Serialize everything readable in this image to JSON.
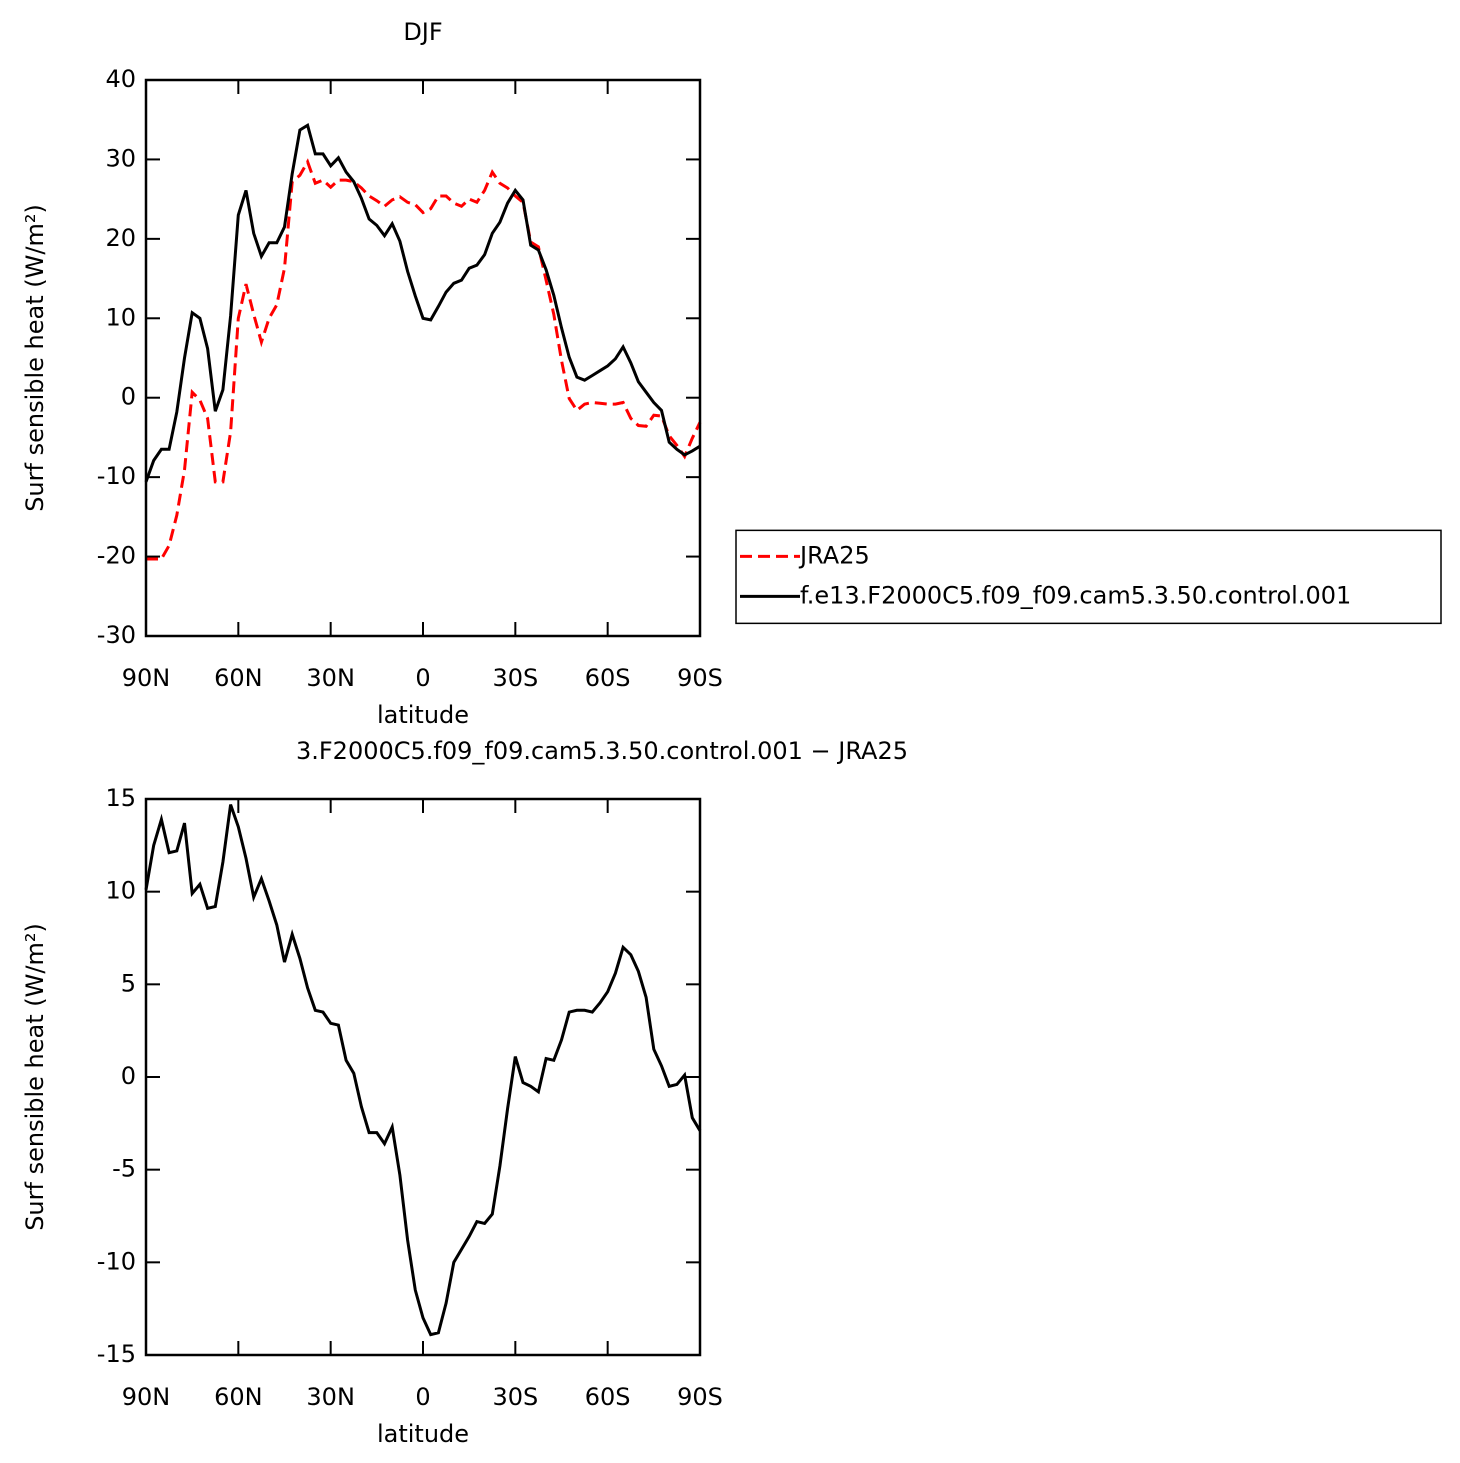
{
  "chart_data": [
    {
      "type": "line",
      "title": "DJF",
      "xlabel": "latitude",
      "ylabel": "Surf sensible heat (W/m²)",
      "x": [
        90,
        87.5,
        85,
        82.5,
        80,
        77.5,
        75,
        72.5,
        70,
        67.5,
        65,
        62.5,
        60,
        57.5,
        55,
        52.5,
        50,
        47.5,
        45,
        42.5,
        40,
        37.5,
        35,
        32.5,
        30,
        27.5,
        25,
        22.5,
        20,
        17.5,
        15,
        12.5,
        10,
        7.5,
        5,
        2.5,
        0,
        -2.5,
        -5,
        -7.5,
        -10,
        -12.5,
        -15,
        -17.5,
        -20,
        -22.5,
        -25,
        -27.5,
        -30,
        -32.5,
        -35,
        -37.5,
        -40,
        -42.5,
        -45,
        -47.5,
        -50,
        -52.5,
        -55,
        -57.5,
        -60,
        -62.5,
        -65,
        -67.5,
        -70,
        -72.5,
        -75,
        -77.5,
        -80,
        -82.5,
        -85,
        -87.5,
        -90
      ],
      "xlim": [
        90,
        -90
      ],
      "xticks": [
        {
          "value": 90,
          "label": "90N"
        },
        {
          "value": 60,
          "label": "60N"
        },
        {
          "value": 30,
          "label": "30N"
        },
        0,
        {
          "value": -30,
          "label": "30S"
        },
        {
          "value": -60,
          "label": "60S"
        },
        {
          "value": -90,
          "label": "90S"
        }
      ],
      "ylim": [
        -30,
        40
      ],
      "yticks": [
        -30,
        -20,
        -10,
        0,
        10,
        20,
        30,
        40
      ],
      "legend": "right",
      "series": [
        {
          "name": "JRA25",
          "color": "#ff0000",
          "linestyle": "dashed",
          "values": [
            -20.3,
            -20.3,
            -20.3,
            -18.6,
            -14.8,
            -9.1,
            0.7,
            -0.3,
            -2.6,
            -10.6,
            -10.6,
            -4.3,
            10,
            14.3,
            10.5,
            7,
            10,
            11.7,
            16.3,
            27.2,
            28,
            29.7,
            27,
            27.4,
            26.5,
            27.4,
            27.4,
            27.2,
            26.4,
            25.4,
            24.8,
            24.1,
            24.9,
            25.3,
            24.6,
            24.3,
            23.3,
            23.8,
            25.4,
            25.4,
            24.5,
            24.1,
            25,
            24.6,
            26.1,
            28.4,
            27,
            26.4,
            25.4,
            24.6,
            19.6,
            19,
            14.8,
            10.5,
            4.7,
            -0.1,
            -1.6,
            -0.8,
            -0.6,
            -0.7,
            -0.8,
            -0.8,
            -0.6,
            -2.6,
            -3.5,
            -3.6,
            -2.2,
            -2.3,
            -4.8,
            -6,
            -7.4,
            -5.1,
            -3.1
          ]
        },
        {
          "name": "f.e13.F2000C5.f09_f09.cam5.3.50.control.001",
          "color": "#000000",
          "linestyle": "solid",
          "values": [
            -10.6,
            -7.9,
            -6.5,
            -6.5,
            -1.8,
            5,
            10.7,
            10,
            6.2,
            -1.7,
            1,
            10.3,
            23,
            26.1,
            20.7,
            17.8,
            19.5,
            19.5,
            21.5,
            28.2,
            33.7,
            34.3,
            30.7,
            30.7,
            29.2,
            30.2,
            28.4,
            27.2,
            25.1,
            22.5,
            21.7,
            20.4,
            21.9,
            19.7,
            15.9,
            12.8,
            10,
            9.8,
            11.5,
            13.3,
            14.4,
            14.8,
            16.3,
            16.7,
            18,
            20.7,
            22.1,
            24.5,
            26.1,
            24.9,
            19.2,
            18.6,
            16.1,
            12.9,
            8.8,
            5.1,
            2.6,
            2.2,
            2.8,
            3.4,
            4,
            4.9,
            6.4,
            4.4,
            2,
            0.7,
            -0.6,
            -1.6,
            -5.6,
            -6.5,
            -7.2,
            -6.7,
            -6.1
          ]
        }
      ]
    },
    {
      "type": "line",
      "title": "3.F2000C5.f09_f09.cam5.3.50.control.001 − JRA25",
      "xlabel": "latitude",
      "ylabel": "Surf sensible heat (W/m²)",
      "x": [
        90,
        87.5,
        85,
        82.5,
        80,
        77.5,
        75,
        72.5,
        70,
        67.5,
        65,
        62.5,
        60,
        57.5,
        55,
        52.5,
        50,
        47.5,
        45,
        42.5,
        40,
        37.5,
        35,
        32.5,
        30,
        27.5,
        25,
        22.5,
        20,
        17.5,
        15,
        12.5,
        10,
        7.5,
        5,
        2.5,
        0,
        -2.5,
        -5,
        -7.5,
        -10,
        -12.5,
        -15,
        -17.5,
        -20,
        -22.5,
        -25,
        -27.5,
        -30,
        -32.5,
        -35,
        -37.5,
        -40,
        -42.5,
        -45,
        -47.5,
        -50,
        -52.5,
        -55,
        -57.5,
        -60,
        -62.5,
        -65,
        -67.5,
        -70,
        -72.5,
        -75,
        -77.5,
        -80,
        -82.5,
        -85,
        -87.5,
        -90
      ],
      "xlim": [
        90,
        -90
      ],
      "xticks": [
        {
          "value": 90,
          "label": "90N"
        },
        {
          "value": 60,
          "label": "60N"
        },
        {
          "value": 30,
          "label": "30N"
        },
        0,
        {
          "value": -30,
          "label": "30S"
        },
        {
          "value": -60,
          "label": "60S"
        },
        {
          "value": -90,
          "label": "90S"
        }
      ],
      "ylim": [
        -15,
        15
      ],
      "yticks": [
        -15,
        -10,
        -5,
        0,
        5,
        10,
        15
      ],
      "color": "#000000",
      "values": [
        10.1,
        12.5,
        13.9,
        12.1,
        12.2,
        13.7,
        9.9,
        10.4,
        9.1,
        9.2,
        11.6,
        14.7,
        13.5,
        11.8,
        9.7,
        10.7,
        9.5,
        8.2,
        6.2,
        7.7,
        6.4,
        4.8,
        3.6,
        3.5,
        2.9,
        2.8,
        0.9,
        0.2,
        -1.6,
        -3,
        -3,
        -3.6,
        -2.7,
        -5.3,
        -8.8,
        -11.5,
        -13,
        -13.9,
        -13.8,
        -12.2,
        -10,
        -9.3,
        -8.6,
        -7.8,
        -7.9,
        -7.4,
        -4.8,
        -1.7,
        1.1,
        -0.3,
        -0.5,
        -0.8,
        1,
        0.9,
        2,
        3.5,
        3.6,
        3.6,
        3.5,
        4,
        4.6,
        5.6,
        7,
        6.6,
        5.7,
        4.3,
        1.5,
        0.6,
        -0.5,
        -0.4,
        0.1,
        -2.2,
        -2.9
      ]
    }
  ]
}
